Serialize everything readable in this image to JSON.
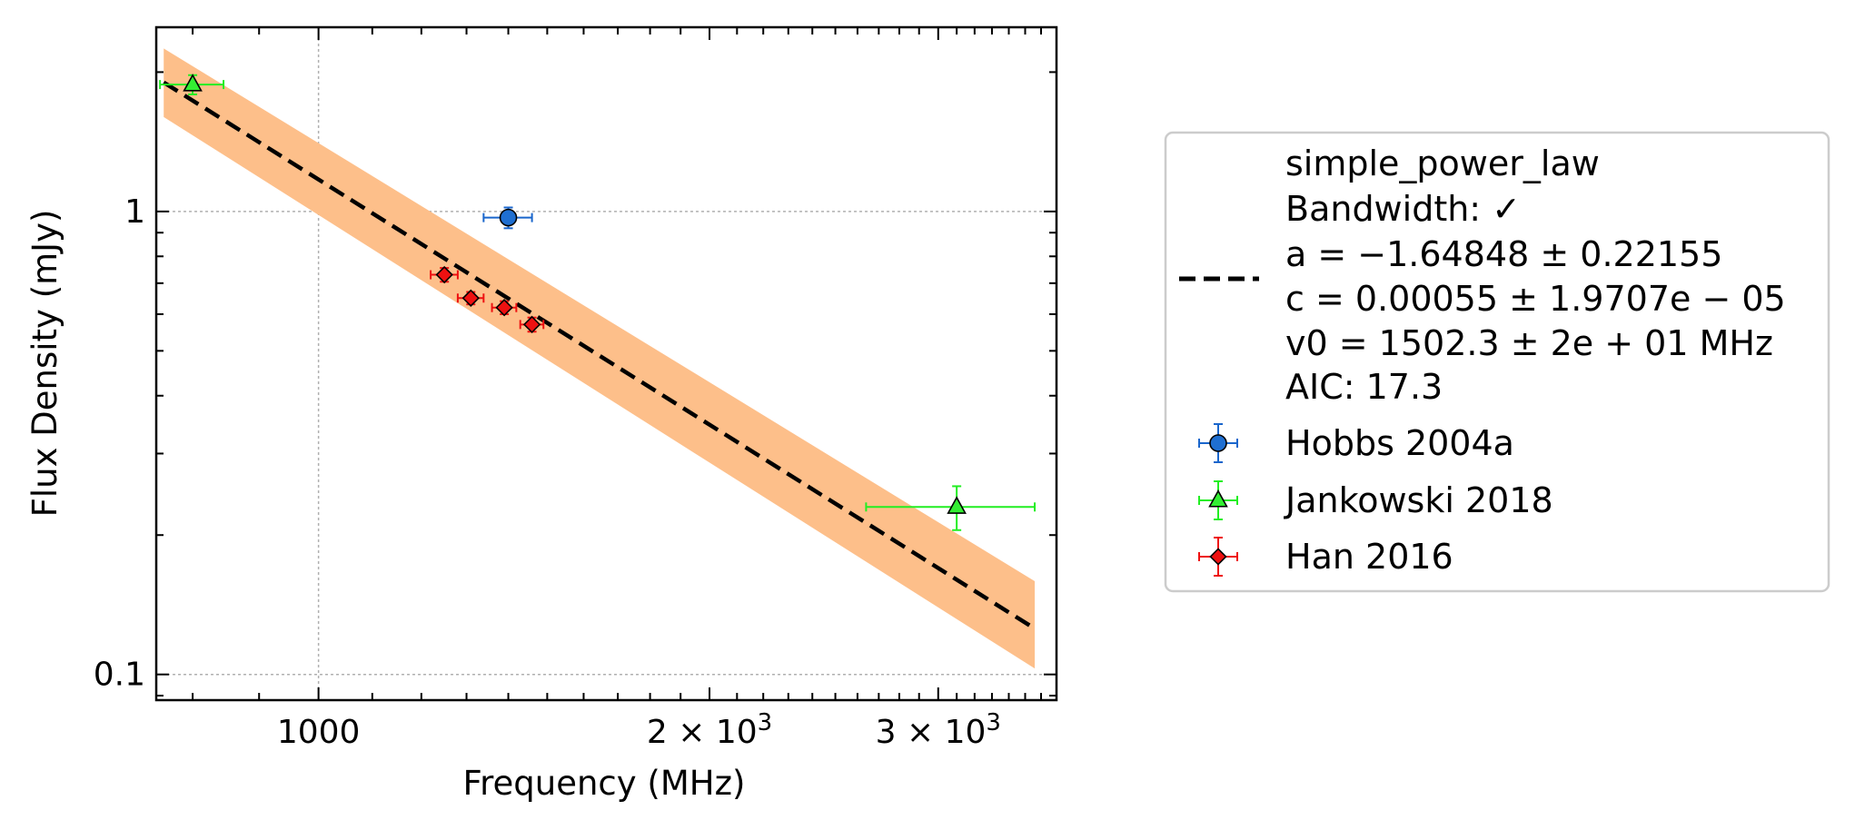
{
  "chart_data": {
    "type": "scatter",
    "x_scale": "log",
    "y_scale": "log",
    "xlim": [
      750,
      3700
    ],
    "ylim": [
      0.088,
      2.5
    ],
    "xlabel": "Frequency (MHz)",
    "ylabel": "Flux Density (mJy)",
    "x_ticks": [
      {
        "value": 1000,
        "label": "1000"
      },
      {
        "value": 2000,
        "label": "2 × 10",
        "exp": "3"
      },
      {
        "value": 3000,
        "label": "3 × 10",
        "exp": "3"
      }
    ],
    "y_ticks": [
      {
        "value": 1,
        "label": "1"
      },
      {
        "value": 0.1,
        "label": "0.1"
      }
    ],
    "grid": true,
    "legend_position": "outside-right",
    "fit": {
      "model": "simple_power_law",
      "text_lines": [
        "simple_power_law",
        "Bandwidth: ✓",
        "a = −1.64848 ± 0.22155",
        "c = 0.00055 ± 1.9707e − 05",
        "v0 = 1502.3 ± 2e + 01 MHz",
        "AIC: 17.3"
      ],
      "a": -1.64848,
      "c": 0.00055,
      "v0": 1502.3,
      "x_range": [
        760,
        3560
      ],
      "y_start": 1.9,
      "y_end": 0.1256,
      "band_start": [
        1.6,
        2.25
      ],
      "band_end": [
        0.103,
        0.159
      ],
      "line_color": "#000000",
      "band_color": "#fdbf8a"
    },
    "series": [
      {
        "name": "Hobbs 2004a",
        "marker": "circle",
        "color": "#1f6fd1",
        "err_color": "#1a66cc",
        "points": [
          {
            "x": 1400,
            "y": 0.97,
            "xerr": 60,
            "yerr": 0.05
          }
        ]
      },
      {
        "name": "Jankowski 2018",
        "marker": "triangle",
        "color": "#33ee33",
        "err_color": "#22ee22",
        "points": [
          {
            "x": 800,
            "y": 1.88,
            "xerr": 45,
            "yerr": 0.09
          },
          {
            "x": 3100,
            "y": 0.23,
            "xerr": 460,
            "yerr": 0.025
          }
        ]
      },
      {
        "name": "Han 2016",
        "marker": "diamond",
        "color": "#ee1111",
        "err_color": "#ee1111",
        "points": [
          {
            "x": 1250,
            "y": 0.73,
            "xerr": 30,
            "yerr": 0.025
          },
          {
            "x": 1310,
            "y": 0.65,
            "xerr": 30,
            "yerr": 0.02
          },
          {
            "x": 1390,
            "y": 0.62,
            "xerr": 30,
            "yerr": 0.02
          },
          {
            "x": 1460,
            "y": 0.57,
            "xerr": 30,
            "yerr": 0.02
          }
        ]
      }
    ]
  }
}
